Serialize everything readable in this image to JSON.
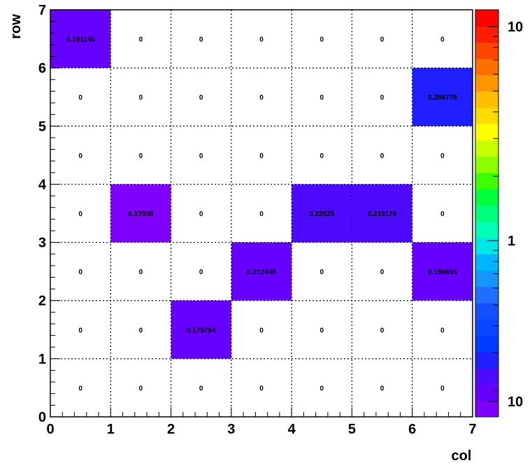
{
  "chart_data": {
    "type": "heatmap",
    "xlabel": "col",
    "ylabel": "row",
    "x_ticks": [
      "0",
      "1",
      "2",
      "3",
      "4",
      "5",
      "6",
      "7"
    ],
    "y_ticks": [
      "0",
      "1",
      "2",
      "3",
      "4",
      "5",
      "6",
      "7"
    ],
    "xlim": [
      0,
      7
    ],
    "ylim": [
      0,
      7
    ],
    "grid": true,
    "colorbar": {
      "scale": "log",
      "tick_labels": [
        "10",
        "1",
        "10"
      ]
    },
    "cell_labels": [
      [
        "0",
        "0",
        "0",
        "0",
        "0",
        "0",
        "0"
      ],
      [
        "0",
        "0",
        "0.179794",
        "0",
        "0",
        "0",
        "0"
      ],
      [
        "0",
        "0",
        "0",
        "0.212448",
        "0",
        "0",
        "0.198856"
      ],
      [
        "0",
        "0.17008",
        "0",
        "0",
        "0.22525",
        "0.219176",
        "0"
      ],
      [
        "0",
        "0",
        "0",
        "0",
        "0",
        "0",
        "0"
      ],
      [
        "0",
        "0",
        "0",
        "0",
        "0",
        "0",
        "0.286778"
      ],
      [
        "0.191146",
        "0",
        "0",
        "0",
        "0",
        "0",
        "0"
      ]
    ],
    "values": [
      [
        0,
        0,
        0,
        0,
        0,
        0,
        0
      ],
      [
        0,
        0,
        0.179794,
        0,
        0,
        0,
        0
      ],
      [
        0,
        0,
        0,
        0.212448,
        0,
        0,
        0.198856
      ],
      [
        0,
        0.17008,
        0,
        0,
        0.22525,
        0.219176,
        0
      ],
      [
        0,
        0,
        0,
        0,
        0,
        0,
        0
      ],
      [
        0,
        0,
        0,
        0,
        0,
        0,
        0.286778
      ],
      [
        0.191146,
        0,
        0,
        0,
        0,
        0,
        0
      ]
    ]
  }
}
